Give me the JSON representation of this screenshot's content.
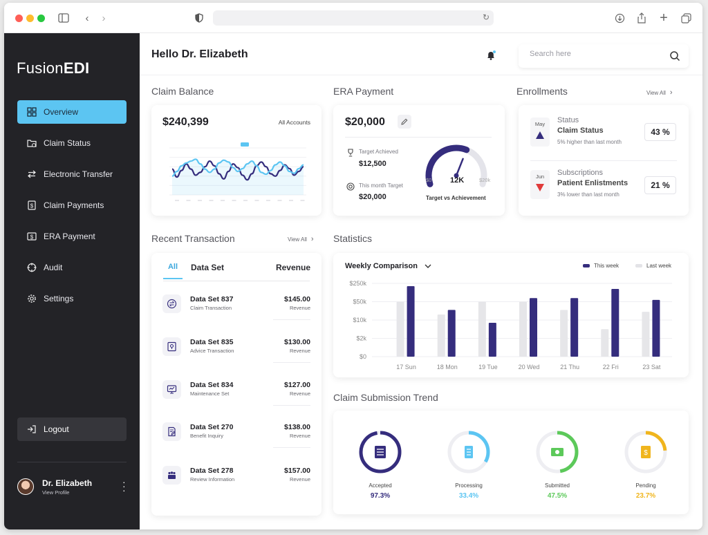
{
  "brand": {
    "name_light": "Fusion",
    "name_bold": "EDI"
  },
  "colors": {
    "accent": "#5cc5f2",
    "navy": "#352d7d",
    "green": "#5cc95a",
    "gold": "#f0b51d",
    "bg_sidebar": "#232327"
  },
  "sidebar": {
    "items": [
      {
        "label": "Overview",
        "icon": "grid-icon",
        "active": true
      },
      {
        "label": "Claim Status",
        "icon": "folder-check-icon",
        "active": false
      },
      {
        "label": "Electronic Transfer",
        "icon": "transfer-arrows-icon",
        "active": false
      },
      {
        "label": "Claim Payments",
        "icon": "dollar-doc-icon",
        "active": false
      },
      {
        "label": "ERA Payment",
        "icon": "dollar-card-icon",
        "active": false
      },
      {
        "label": "Audit",
        "icon": "crosshair-icon",
        "active": false
      },
      {
        "label": "Settings",
        "icon": "gear-icon",
        "active": false
      }
    ],
    "logout_label": "Logout",
    "profile": {
      "name": "Dr. Elizabeth",
      "sub": "View Profile"
    }
  },
  "header": {
    "greeting": "Hello Dr. Elizabeth",
    "search_placeholder": "Search here"
  },
  "claim_balance": {
    "title": "Claim Balance",
    "amount": "$240,399",
    "filter": "All Accounts"
  },
  "era_payment": {
    "title": "ERA Payment",
    "amount": "$20,000",
    "target_achieved_label": "Target Achieved",
    "target_achieved_value": "$12,500",
    "month_target_label": "This month Target",
    "month_target_value": "$20,000",
    "gauge": {
      "min_label": "$0",
      "value_label": "12K",
      "max_label": "$20k",
      "fraction": 0.6,
      "caption": "Target vs Achievement"
    }
  },
  "enrollments": {
    "title": "Enrollments",
    "view_all": "View All",
    "items": [
      {
        "month": "May",
        "title": "Status",
        "name": "Claim Status",
        "detail": "5% higher than last month",
        "pct": "43 %",
        "direction": "up"
      },
      {
        "month": "Jun",
        "title": "Subscriptions",
        "name": "Patient Enlistments",
        "detail": "3% lower than last month",
        "pct": "21 %",
        "direction": "down"
      }
    ]
  },
  "recent_transaction": {
    "title": "Recent Transaction",
    "view_all": "View All",
    "tabs": {
      "all": "All",
      "dataset": "Data Set",
      "revenue": "Revenue"
    },
    "rows": [
      {
        "name": "Data Set 837",
        "sub": "Claim Transaction",
        "amount": "$145.00",
        "rev": "Revenue",
        "icon": "exchange-icon"
      },
      {
        "name": "Data Set 835",
        "sub": "Advice Transaction",
        "amount": "$130.00",
        "rev": "Revenue",
        "icon": "location-doc-icon"
      },
      {
        "name": "Data Set 834",
        "sub": "Maintenance Set",
        "amount": "$127.00",
        "rev": "Revenue",
        "icon": "monitor-icon"
      },
      {
        "name": "Data Set 270",
        "sub": "Benefit Inquiry",
        "amount": "$138.00",
        "rev": "Revenue",
        "icon": "doc-edit-icon"
      },
      {
        "name": "Data Set 278",
        "sub": "Review Information",
        "amount": "$157.00",
        "rev": "Revenue",
        "icon": "group-icon"
      }
    ]
  },
  "statistics": {
    "title": "Statistics",
    "dropdown": "Weekly Comparison",
    "legend": {
      "this_week": "This week",
      "last_week": "Last week"
    }
  },
  "claim_trend": {
    "title": "Claim Submission Trend",
    "items": [
      {
        "label": "Accepted",
        "value": "97.3%",
        "fraction": 0.973,
        "color": "#352d7d",
        "icon": "receipt-icon"
      },
      {
        "label": "Processing",
        "value": "33.4%",
        "fraction": 0.334,
        "color": "#5cc5f2",
        "icon": "doc-list-icon"
      },
      {
        "label": "Submitted",
        "value": "47.5%",
        "fraction": 0.475,
        "color": "#5cc95a",
        "icon": "money-icon"
      },
      {
        "label": "Pending",
        "value": "23.7%",
        "fraction": 0.237,
        "color": "#f0b51d",
        "icon": "dollar-receipt-icon"
      }
    ]
  },
  "chart_data": [
    {
      "type": "bar",
      "categories": [
        "17 Sun",
        "18 Mon",
        "19 Tue",
        "20 Wed",
        "21 Thu",
        "22 Fri",
        "23 Sat"
      ],
      "y_ticks": [
        "$0",
        "$2k",
        "$10k",
        "$50k",
        "$250k"
      ],
      "series": [
        {
          "name": "This week",
          "values": [
            3.85,
            2.55,
            1.85,
            3.2,
            3.2,
            3.7,
            3.1
          ],
          "color": "#352d7d"
        },
        {
          "name": "Last week",
          "values": [
            3.0,
            2.3,
            3.0,
            3.0,
            2.55,
            1.5,
            2.45
          ],
          "color": "#e6e6e9"
        }
      ],
      "scale_note": "values in tick-index units: 0=$0,1=$2k,2=$10k,3=$50k,4=$250k",
      "grid": true,
      "legend": "top-right"
    },
    {
      "type": "line",
      "x": [
        0,
        1,
        2,
        3,
        4,
        5,
        6,
        7,
        8,
        9,
        10,
        11,
        12,
        13,
        14,
        15,
        16,
        17,
        18,
        19,
        20,
        21,
        22,
        23,
        24,
        25,
        26,
        27,
        28
      ],
      "series": [
        {
          "name": "",
          "values": [
            0.55,
            0.38,
            0.52,
            0.66,
            0.55,
            0.42,
            0.48,
            0.6,
            0.72,
            0.62,
            0.45,
            0.34,
            0.5,
            0.66,
            0.58,
            0.42,
            0.32,
            0.45,
            0.62,
            0.7,
            0.6,
            0.45,
            0.4,
            0.52,
            0.64,
            0.56,
            0.42,
            0.5,
            0.6
          ],
          "color": "#352d7d"
        },
        {
          "name": "",
          "values": [
            0.4,
            0.5,
            0.62,
            0.68,
            0.72,
            0.76,
            0.66,
            0.55,
            0.48,
            0.55,
            0.68,
            0.74,
            0.7,
            0.58,
            0.5,
            0.56,
            0.66,
            0.72,
            0.62,
            0.48,
            0.44,
            0.52,
            0.64,
            0.7,
            0.62,
            0.5,
            0.46,
            0.56,
            0.64
          ],
          "color": "#5cc5f2"
        }
      ],
      "grid": true
    }
  ]
}
